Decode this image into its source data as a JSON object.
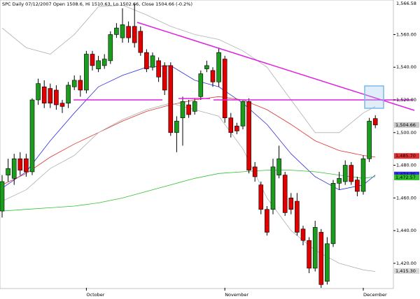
{
  "chart_data": {
    "type": "candlestick",
    "title": "SPC Daily 07/12/2007 Open 1508.6, Hi 1510.63, Lo 1502.66, Close 1504.66 (-0.2%)",
    "categories": [
      null,
      null,
      null,
      null,
      null,
      null,
      null,
      null,
      null,
      null,
      null,
      null,
      null,
      null,
      "October",
      null,
      null,
      null,
      null,
      null,
      null,
      null,
      null,
      null,
      null,
      null,
      null,
      null,
      null,
      null,
      null,
      null,
      null,
      null,
      null,
      null,
      null,
      "November",
      null,
      null,
      null,
      null,
      null,
      null,
      null,
      null,
      null,
      null,
      null,
      null,
      null,
      null,
      null,
      null,
      null,
      null,
      null,
      null,
      null,
      null,
      "December",
      null,
      null
    ],
    "open": [
      1452,
      1474,
      1472,
      1484,
      1484,
      1476,
      1520,
      1528,
      1527,
      1526,
      1518,
      1518,
      1528,
      1532,
      1526,
      1548,
      1539,
      1541,
      1544,
      1560,
      1558,
      1565,
      1565,
      1562,
      1549,
      1540,
      1544,
      1541,
      1541,
      1500,
      1509,
      1517,
      1513,
      1522,
      1539,
      1538,
      1531,
      1545,
      1509,
      1504,
      1504,
      1519,
      1479,
      1468,
      1453,
      1453,
      1474,
      1474,
      1460,
      1458,
      1441,
      1434,
      1417,
      1439,
      1409,
      1432,
      1469,
      1470,
      1480,
      1471,
      1464,
      1484,
      1508.6
    ],
    "high": [
      1474,
      1484,
      1487,
      1488,
      1487,
      1521,
      1533,
      1532,
      1530,
      1529,
      1520,
      1531,
      1535,
      1535,
      1550,
      1550,
      1547,
      1548,
      1562,
      1567,
      1576,
      1568,
      1579,
      1565,
      1551,
      1549,
      1546,
      1543,
      1543,
      1510,
      1522,
      1520,
      1521,
      1538,
      1544,
      1540,
      1552,
      1547,
      1512,
      1506,
      1520,
      1521,
      1482,
      1470,
      1455,
      1484,
      1492,
      1476,
      1463,
      1463,
      1443,
      1436,
      1446,
      1441,
      1436,
      1471,
      1476,
      1483,
      1482,
      1473,
      1486,
      1509,
      1510.63
    ],
    "low": [
      1448,
      1470,
      1468,
      1474,
      1473,
      1474,
      1517,
      1515,
      1515,
      1514,
      1512,
      1515,
      1526,
      1522,
      1524,
      1538,
      1537,
      1539,
      1542,
      1558,
      1555,
      1555,
      1552,
      1547,
      1537,
      1538,
      1531,
      1523,
      1498,
      1488,
      1492,
      1509,
      1511,
      1520,
      1537,
      1528,
      1528,
      1506,
      1497,
      1499,
      1502,
      1475,
      1470,
      1450,
      1437,
      1450,
      1472,
      1449,
      1450,
      1437,
      1431,
      1414,
      1415,
      1405,
      1407,
      1430,
      1465,
      1468,
      1468,
      1461,
      1462,
      1482,
      1502.66
    ],
    "close": [
      1470,
      1478,
      1484,
      1477,
      1476,
      1520,
      1530,
      1518,
      1518,
      1517,
      1516,
      1529,
      1532,
      1526,
      1548,
      1541,
      1544,
      1545,
      1560,
      1564,
      1566,
      1558,
      1555,
      1549,
      1539,
      1547,
      1534,
      1526,
      1500,
      1507,
      1519,
      1511,
      1519,
      1536,
      1541,
      1531,
      1549,
      1509,
      1500,
      1501,
      1519,
      1477,
      1473,
      1453,
      1439,
      1479,
      1484,
      1451,
      1453,
      1439,
      1434,
      1417,
      1442,
      1407,
      1432,
      1469,
      1472,
      1480,
      1470,
      1464,
      1484,
      1507,
      1504.66
    ],
    "up_color": "#1c9c1c",
    "down_color": "#e00000",
    "lines": [
      {
        "color": "#3030e0",
        "x": [
          0,
          4,
          8,
          12,
          16,
          20,
          24,
          28,
          32,
          36,
          40,
          44,
          48,
          52,
          56,
          60,
          62
        ],
        "values": [
          1466,
          1476,
          1495,
          1512,
          1528,
          1535,
          1540,
          1541,
          1532,
          1528,
          1518,
          1505,
          1487,
          1473,
          1465,
          1468,
          1474
        ]
      },
      {
        "color": "#e03030",
        "x": [
          0,
          4,
          8,
          12,
          16,
          20,
          24,
          28,
          32,
          36,
          40,
          44,
          48,
          52,
          56,
          60,
          62
        ],
        "values": [
          1468,
          1475,
          1485,
          1493,
          1500,
          1507,
          1513,
          1517,
          1520,
          1522,
          1520,
          1514,
          1505,
          1495,
          1489,
          1486,
          1485
        ]
      },
      {
        "color": "#30c030",
        "x": [
          0,
          4,
          8,
          12,
          16,
          20,
          24,
          28,
          32,
          36,
          40,
          44,
          48,
          52,
          56,
          60,
          62
        ],
        "values": [
          1452,
          1453,
          1454,
          1455,
          1457,
          1460,
          1464,
          1468,
          1472,
          1475,
          1476,
          1477,
          1477,
          1476,
          1474,
          1472,
          1473
        ]
      },
      {
        "color": "#b0b0b0",
        "x": [
          0,
          4,
          8,
          12,
          16,
          20,
          24,
          28,
          32,
          36,
          40,
          44,
          48,
          52,
          56,
          60,
          62
        ],
        "values": [
          1564,
          1552,
          1548,
          1560,
          1577,
          1578,
          1572,
          1565,
          1560,
          1557,
          1550,
          1540,
          1520,
          1500,
          1500,
          1512,
          1516
        ]
      },
      {
        "color": "#b0b0b0",
        "x": [
          0,
          4,
          8,
          12,
          16,
          20,
          24,
          28,
          32,
          36,
          40,
          44,
          48,
          52,
          56,
          60,
          62
        ],
        "values": [
          1458,
          1465,
          1478,
          1486,
          1500,
          1508,
          1514,
          1518,
          1514,
          1510,
          1490,
          1460,
          1440,
          1428,
          1420,
          1416,
          1415
        ]
      }
    ],
    "ylim": [
      1405,
      1579
    ],
    "yticks": [
      {
        "value": 1420,
        "label": "1,420.00"
      },
      {
        "value": 1440,
        "label": "1,440.00"
      },
      {
        "value": 1460,
        "label": "1,460.00"
      },
      {
        "value": 1480,
        "label": "1,480.00"
      },
      {
        "value": 1500,
        "label": "1,500.00"
      },
      {
        "value": 1520,
        "label": "1,520.00"
      },
      {
        "value": 1540,
        "label": "1,540.00"
      },
      {
        "value": 1560,
        "label": "1,560.00"
      }
    ],
    "top_label": "1,566.58",
    "price_labels": [
      {
        "value": 1504.66,
        "label": "1,504.66",
        "color": "#c8c8c8"
      },
      {
        "value": 1485.7,
        "label": "1,485.70",
        "color": "#e03030"
      },
      {
        "value": 1474.35,
        "label": "1,474.35",
        "color": "#3030e0"
      },
      {
        "value": 1472.57,
        "label": "1,472.57",
        "color": "#30c030"
      },
      {
        "value": 1415.3,
        "label": "1,415.30",
        "color": "#d8d8d8"
      }
    ]
  }
}
